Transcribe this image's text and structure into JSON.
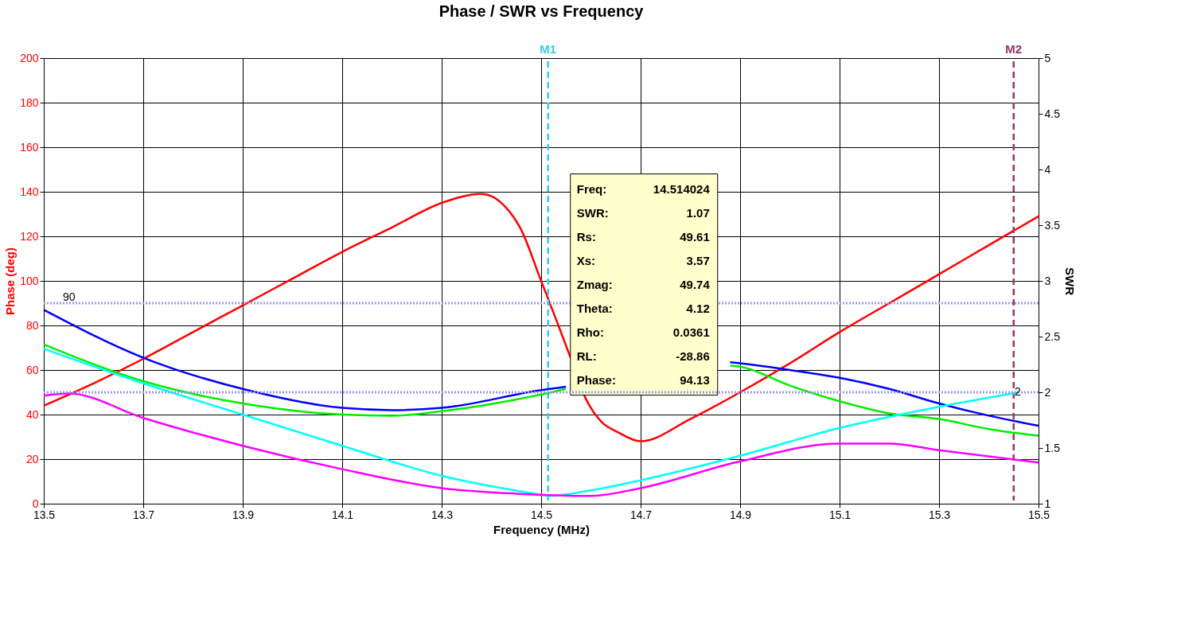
{
  "chart_data": {
    "type": "line",
    "title": "Phase / SWR  vs  Frequency",
    "xlabel": "Frequency (MHz)",
    "ylabel": "Phase (deg)",
    "y2label": "SWR",
    "xlim": [
      13.5,
      15.5
    ],
    "xticks": [
      13.5,
      13.7,
      13.9,
      14.1,
      14.3,
      14.5,
      14.7,
      14.9,
      15.1,
      15.3,
      15.5
    ],
    "ylim": [
      0,
      200
    ],
    "yticks": [
      0,
      20,
      40,
      60,
      80,
      100,
      120,
      140,
      160,
      180,
      200
    ],
    "y2lim": [
      1,
      5
    ],
    "y2ticks": [
      1,
      1.5,
      2,
      2.5,
      3,
      3.5,
      4,
      4.5,
      5
    ],
    "grid": true,
    "series": [
      {
        "color": "#ff0000",
        "x": [
          13.5,
          13.6,
          13.7,
          13.8,
          13.9,
          14.0,
          14.1,
          14.2,
          14.3,
          14.38,
          14.455,
          14.5,
          14.56,
          14.59,
          14.62,
          14.655,
          14.7,
          14.8,
          14.9,
          15.0,
          15.1,
          15.2,
          15.3,
          15.4,
          15.5
        ],
        "values": [
          44,
          54,
          65,
          77,
          89,
          101,
          113,
          124,
          135,
          139,
          125,
          100,
          65,
          47,
          37,
          32,
          28,
          38,
          50,
          63,
          77,
          90,
          103,
          116,
          129
        ]
      },
      {
        "color": "#0000ff",
        "axis": "y2",
        "x": [
          13.5,
          13.7,
          13.9,
          14.1,
          14.2,
          14.3,
          14.5,
          14.55,
          14.6,
          14.7,
          14.8,
          14.88,
          14.9,
          15.0,
          15.1,
          15.2,
          15.3,
          15.4,
          15.5
        ],
        "values": [
          2.74,
          2.31,
          2.03,
          1.86,
          1.84,
          1.86,
          2.02,
          2.05,
          null,
          null,
          null,
          2.27,
          2.26,
          2.2,
          2.13,
          2.03,
          1.9,
          1.79,
          1.7
        ]
      },
      {
        "color": "#00ee00",
        "axis": "y2",
        "x": [
          13.5,
          13.7,
          13.9,
          14.1,
          14.2,
          14.3,
          14.5,
          14.55,
          14.6,
          14.7,
          14.8,
          14.88,
          14.9,
          15.0,
          15.1,
          15.2,
          15.3,
          15.4,
          15.5
        ],
        "values": [
          2.43,
          2.1,
          1.9,
          1.8,
          1.79,
          1.83,
          1.98,
          2.03,
          null,
          null,
          null,
          2.24,
          2.23,
          2.06,
          1.92,
          1.81,
          1.76,
          1.67,
          1.61
        ]
      },
      {
        "color": "#00ffff",
        "axis": "y2",
        "x": [
          13.5,
          13.7,
          13.9,
          14.1,
          14.3,
          14.5,
          14.514,
          14.6,
          14.7,
          14.9,
          15.1,
          15.3,
          15.46
        ],
        "values": [
          2.39,
          2.08,
          1.8,
          1.52,
          1.25,
          1.08,
          1.07,
          1.12,
          1.21,
          1.43,
          1.68,
          1.87,
          2.0
        ]
      },
      {
        "color": "#ff00ff",
        "axis": "y2",
        "x": [
          13.5,
          13.55,
          13.7,
          13.9,
          14.1,
          14.3,
          14.45,
          14.6,
          14.7,
          14.9,
          15.1,
          15.2,
          15.3,
          15.5
        ],
        "values": [
          1.97,
          1.99,
          1.77,
          1.52,
          1.31,
          1.14,
          1.09,
          1.07,
          1.14,
          1.38,
          1.54,
          1.54,
          1.48,
          1.37
        ]
      }
    ],
    "ref_lines": [
      {
        "axis": "y",
        "value": 90,
        "label": "90",
        "color": "#9999ee",
        "line_style": "dotted"
      },
      {
        "axis": "y2",
        "value": 2,
        "label": "2",
        "color": "#9999ee",
        "line_style": "dotted"
      },
      {
        "axis": "x",
        "value": 14.514,
        "label": "M1",
        "color": "#33ccee",
        "line_style": "dashed"
      },
      {
        "axis": "x",
        "value": 15.45,
        "label": "M2",
        "color": "#993366",
        "line_style": "dashed"
      }
    ],
    "annotations": [
      "Freq: 14.514024",
      "SWR: 1.07",
      "Rs: 49.61",
      "Xs: 3.57",
      "Zmag: 49.74",
      "Theta: 4.12",
      "Rho: 0.0361",
      "RL: -28.86",
      "Phase: 94.13"
    ]
  }
}
